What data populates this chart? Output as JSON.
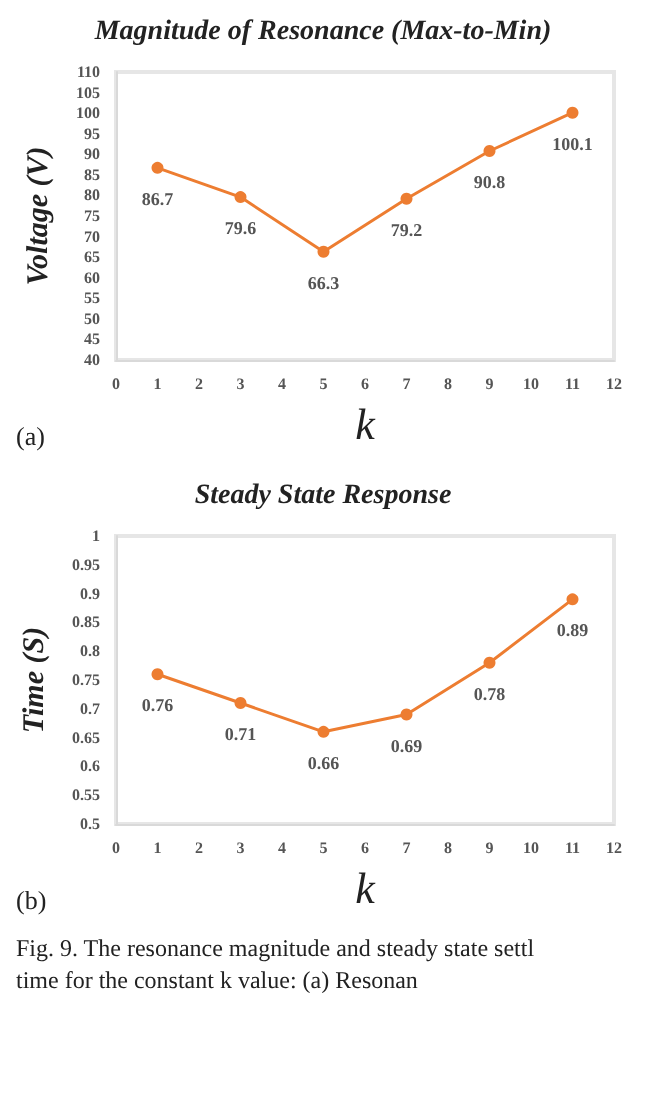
{
  "chart_data": [
    {
      "type": "line",
      "title": "Magnitude of Resonance (Max-to-Min)",
      "xlabel": "k",
      "ylabel": "Voltage (V)",
      "x": [
        1,
        3,
        5,
        7,
        9,
        11
      ],
      "series": [
        {
          "color": "#ed7d31",
          "values": [
            86.7,
            79.6,
            66.3,
            79.2,
            90.8,
            100.1
          ]
        }
      ],
      "xlim": [
        0,
        12
      ],
      "xticks": [
        0,
        1,
        2,
        3,
        4,
        5,
        6,
        7,
        8,
        9,
        10,
        11,
        12
      ],
      "ylim": [
        40,
        110
      ],
      "yticks": [
        40,
        45,
        50,
        55,
        60,
        65,
        70,
        75,
        80,
        85,
        90,
        95,
        100,
        105,
        110
      ],
      "marker": "circle",
      "data_labels": true,
      "annotations": [
        "(a)"
      ]
    },
    {
      "type": "line",
      "title": "Steady State Response",
      "xlabel": "k",
      "ylabel": "Time (S)",
      "x": [
        1,
        3,
        5,
        7,
        9,
        11
      ],
      "series": [
        {
          "color": "#ed7d31",
          "values": [
            0.76,
            0.71,
            0.66,
            0.69,
            0.78,
            0.89
          ]
        }
      ],
      "xlim": [
        0,
        12
      ],
      "xticks": [
        0,
        1,
        2,
        3,
        4,
        5,
        6,
        7,
        8,
        9,
        10,
        11,
        12
      ],
      "ylim": [
        0.5,
        1
      ],
      "yticks": [
        0.5,
        0.55,
        0.6,
        0.65,
        0.7,
        0.75,
        0.8,
        0.85,
        0.9,
        0.95,
        1
      ],
      "marker": "circle",
      "data_labels": true,
      "annotations": [
        "(b)",
        "Fig. 9. The resonance magnitude and steady state settl time for the constant k value: (a) Resonan"
      ]
    }
  ]
}
